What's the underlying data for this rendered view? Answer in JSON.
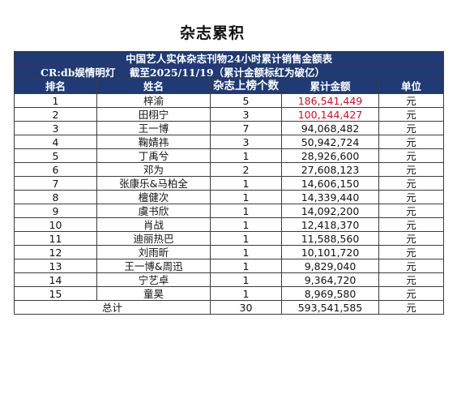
{
  "page_title": "杂志累积",
  "table": {
    "title": "中国艺人实体杂志刊物24小时累计销售金额表",
    "subtitle": "CR:db娱情明灯    截至2025/11/19（累计金额标红为破亿）",
    "headers": [
      "排名",
      "姓名",
      "杂志上榜个数",
      "累计金额",
      "单位"
    ],
    "highlight_color": "#c8102e",
    "rows": [
      {
        "rank": "1",
        "name": "梓渝",
        "count": "5",
        "amount": "186,541,449",
        "unit": "元",
        "over_100m": true
      },
      {
        "rank": "2",
        "name": "田栩宁",
        "count": "3",
        "amount": "100,144,427",
        "unit": "元",
        "over_100m": true
      },
      {
        "rank": "3",
        "name": "王一博",
        "count": "7",
        "amount": "94,068,482",
        "unit": "元",
        "over_100m": false
      },
      {
        "rank": "4",
        "name": "鞠婧祎",
        "count": "3",
        "amount": "50,942,724",
        "unit": "元",
        "over_100m": false
      },
      {
        "rank": "5",
        "name": "丁禹兮",
        "count": "1",
        "amount": "28,926,600",
        "unit": "元",
        "over_100m": false
      },
      {
        "rank": "6",
        "name": "邓为",
        "count": "2",
        "amount": "27,608,123",
        "unit": "元",
        "over_100m": false
      },
      {
        "rank": "7",
        "name": "张康乐&马柏全",
        "count": "1",
        "amount": "14,606,150",
        "unit": "元",
        "over_100m": false
      },
      {
        "rank": "8",
        "name": "檀健次",
        "count": "1",
        "amount": "14,339,440",
        "unit": "元",
        "over_100m": false
      },
      {
        "rank": "9",
        "name": "虞书欣",
        "count": "1",
        "amount": "14,092,200",
        "unit": "元",
        "over_100m": false
      },
      {
        "rank": "10",
        "name": "肖战",
        "count": "1",
        "amount": "12,418,370",
        "unit": "元",
        "over_100m": false
      },
      {
        "rank": "11",
        "name": "迪丽热巴",
        "count": "1",
        "amount": "11,588,560",
        "unit": "元",
        "over_100m": false
      },
      {
        "rank": "12",
        "name": "刘雨昕",
        "count": "1",
        "amount": "10,101,720",
        "unit": "元",
        "over_100m": false
      },
      {
        "rank": "13",
        "name": "王一博&周迅",
        "count": "1",
        "amount": "9,829,040",
        "unit": "元",
        "over_100m": false
      },
      {
        "rank": "14",
        "name": "宁艺卓",
        "count": "1",
        "amount": "9,364,720",
        "unit": "元",
        "over_100m": false
      },
      {
        "rank": "15",
        "name": "童昊",
        "count": "1",
        "amount": "8,969,580",
        "unit": "元",
        "over_100m": false
      }
    ],
    "total": {
      "label": "总计",
      "count": "30",
      "amount": "593,541,585",
      "unit": "元"
    }
  }
}
